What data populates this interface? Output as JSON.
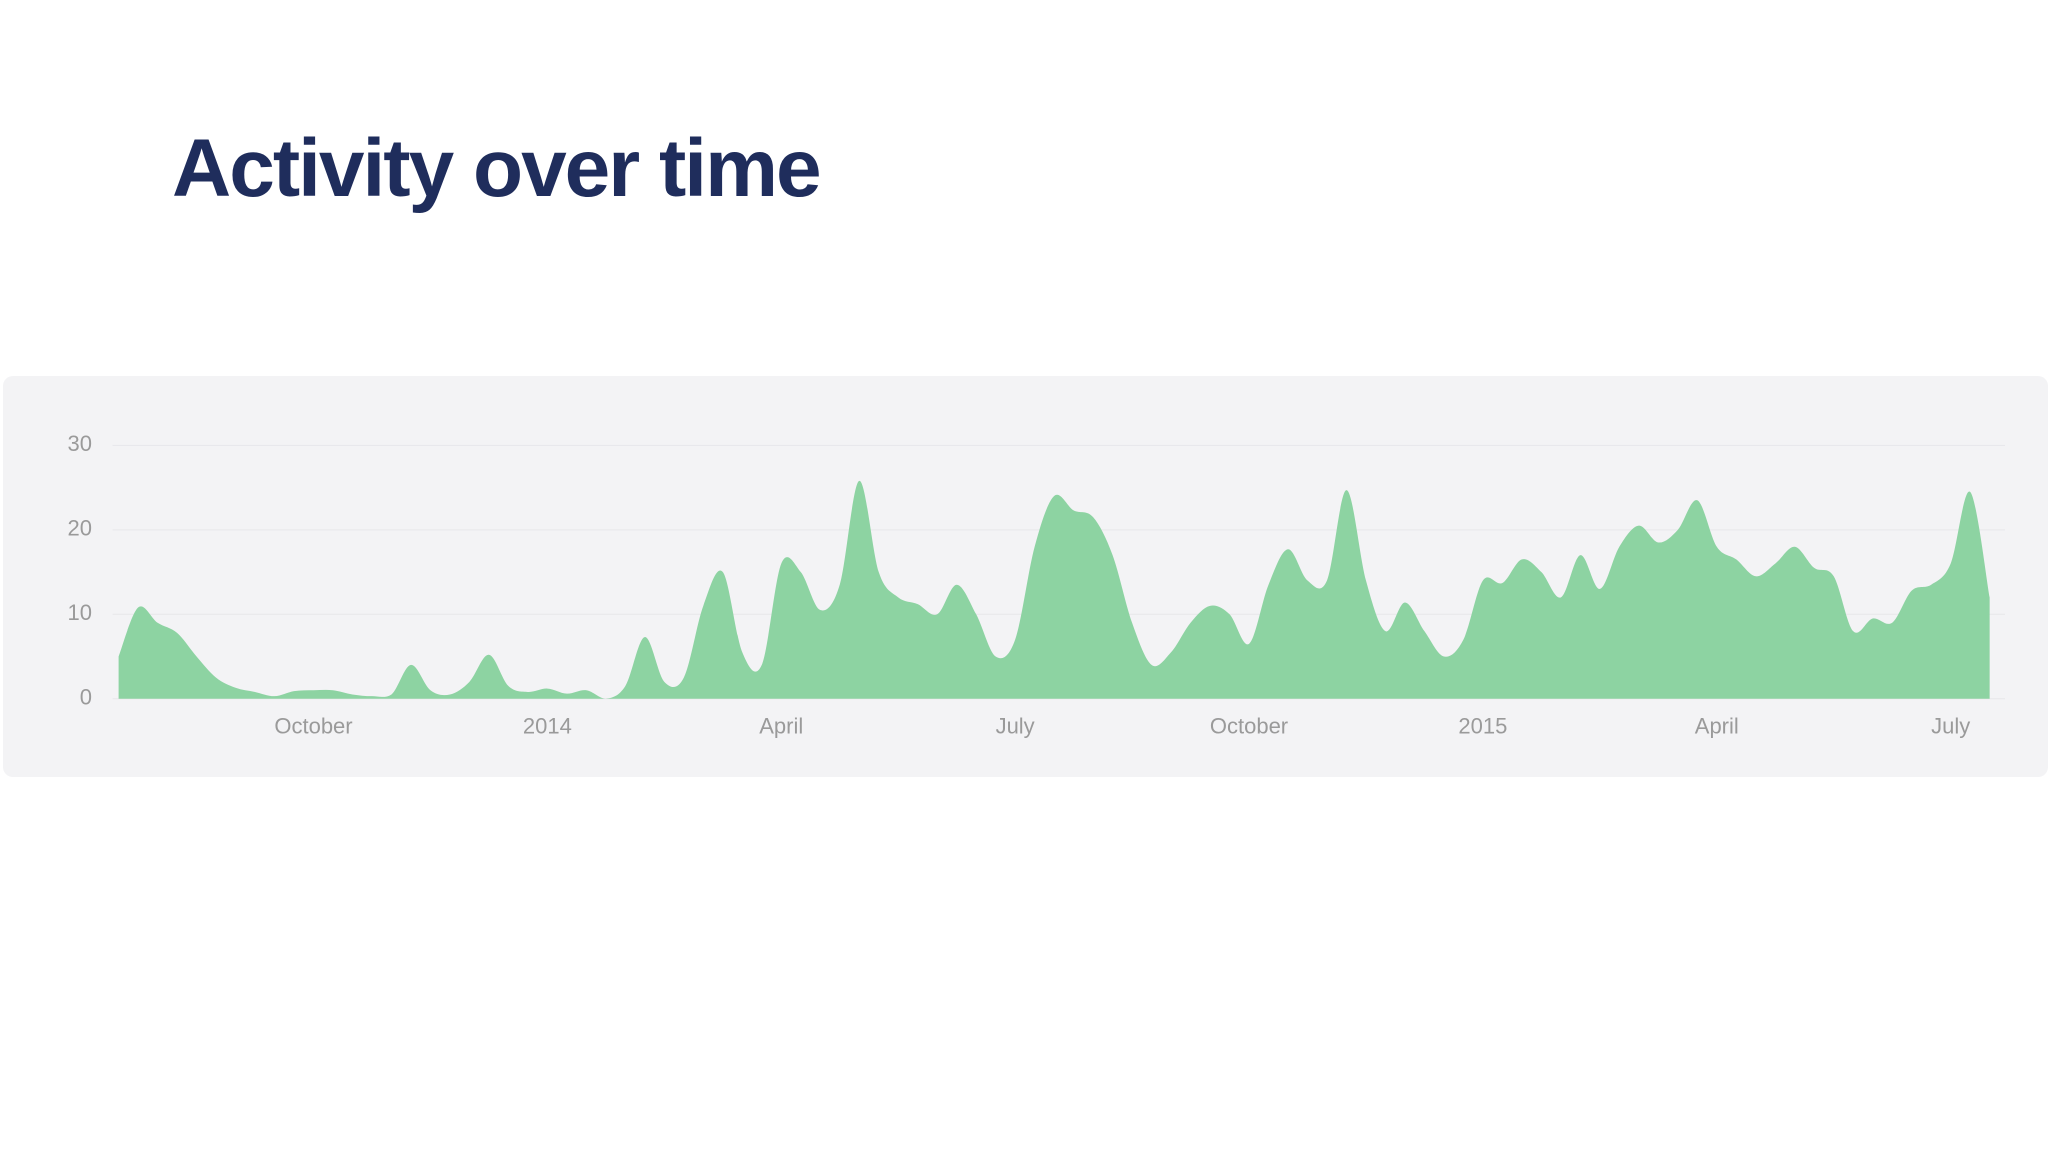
{
  "chart_data": {
    "type": "area",
    "title": "Activity over time",
    "categories": [
      null,
      null,
      null,
      null,
      null,
      null,
      null,
      null,
      null,
      null,
      "October",
      null,
      null,
      null,
      null,
      null,
      null,
      null,
      null,
      null,
      null,
      null,
      "2014",
      null,
      null,
      null,
      null,
      null,
      null,
      null,
      null,
      null,
      null,
      null,
      "April",
      null,
      null,
      null,
      null,
      null,
      null,
      null,
      null,
      null,
      null,
      null,
      "July",
      null,
      null,
      null,
      null,
      null,
      null,
      null,
      null,
      null,
      null,
      null,
      "October",
      null,
      null,
      null,
      null,
      null,
      null,
      null,
      null,
      null,
      null,
      null,
      "2015",
      null,
      null,
      null,
      null,
      null,
      null,
      null,
      null,
      null,
      null,
      null,
      "April",
      null,
      null,
      null,
      null,
      null,
      null,
      null,
      null,
      null,
      null,
      null,
      "July",
      null,
      null
    ],
    "values": [
      5,
      10.8,
      9,
      7.8,
      5,
      2.5,
      1.3,
      0.8,
      0.3,
      0.9,
      1,
      1,
      0.5,
      0.3,
      0.5,
      4,
      1,
      0.5,
      2,
      5.2,
      1.5,
      0.8,
      1.2,
      0.6,
      1,
      0,
      1.5,
      7.3,
      2,
      2.5,
      11,
      15,
      5.5,
      4,
      16,
      15,
      10.5,
      13.5,
      25.8,
      15,
      12,
      11.2,
      10,
      13.5,
      10,
      5,
      7,
      18,
      24,
      22.3,
      21.5,
      17,
      9,
      4,
      5.5,
      9,
      11,
      10,
      6.5,
      13.5,
      17.7,
      14,
      14,
      24.7,
      14,
      8,
      11.4,
      8,
      5,
      7,
      14,
      13.7,
      16.5,
      15,
      12,
      17,
      13,
      18,
      20.5,
      18.5,
      20,
      23.5,
      18,
      16.5,
      14.5,
      16,
      18,
      15.5,
      14.5,
      8,
      9.5,
      9,
      12.8,
      13.5,
      16,
      24.5,
      12
    ],
    "color": "#8dd3a2",
    "ylim": [
      0,
      30
    ],
    "yticks": [
      0,
      10,
      20,
      30
    ],
    "grid": true
  }
}
